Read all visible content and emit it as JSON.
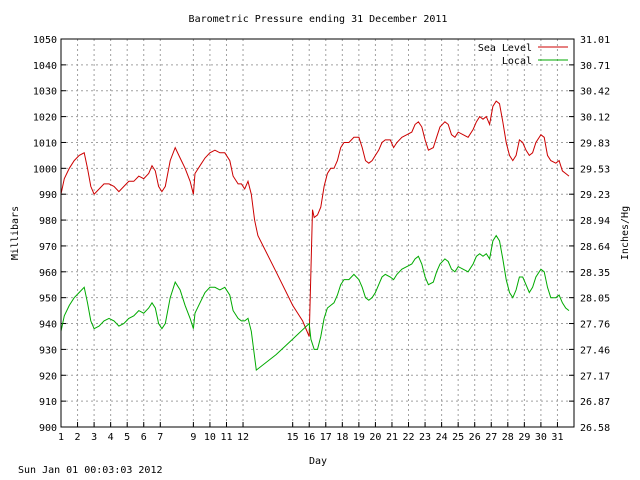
{
  "chart_data": {
    "type": "line",
    "title": "Barometric Pressure ending 31 December 2011",
    "xlabel": "Day",
    "ylabel": "Millibars",
    "y2label": "Inches/Hg",
    "xlim": [
      1,
      32
    ],
    "ylim": [
      900,
      1050
    ],
    "y_ticks": [
      900,
      910,
      920,
      930,
      940,
      950,
      960,
      970,
      980,
      990,
      1000,
      1010,
      1020,
      1030,
      1040,
      1050
    ],
    "y2_ticks": [
      "26.58",
      "26.87",
      "27.17",
      "27.46",
      "27.76",
      "28.05",
      "28.35",
      "28.64",
      "28.94",
      "29.23",
      "29.53",
      "29.83",
      "30.12",
      "30.42",
      "30.71",
      "31.01"
    ],
    "x_ticks": [
      {
        "day": 1,
        "label": "1"
      },
      {
        "day": 2,
        "label": "2"
      },
      {
        "day": 3,
        "label": "3"
      },
      {
        "day": 4,
        "label": "4"
      },
      {
        "day": 5,
        "label": "5"
      },
      {
        "day": 6,
        "label": "6"
      },
      {
        "day": 7,
        "label": "7"
      },
      {
        "day": 9,
        "label": "9"
      },
      {
        "day": 10,
        "label": "10"
      },
      {
        "day": 11,
        "label": "11"
      },
      {
        "day": 12,
        "label": "12"
      },
      {
        "day": 15,
        "label": "15"
      },
      {
        "day": 16,
        "label": "16"
      },
      {
        "day": 17,
        "label": "17"
      },
      {
        "day": 18,
        "label": "18"
      },
      {
        "day": 19,
        "label": "19"
      },
      {
        "day": 20,
        "label": "20"
      },
      {
        "day": 21,
        "label": "21"
      },
      {
        "day": 22,
        "label": "22"
      },
      {
        "day": 23,
        "label": "23"
      },
      {
        "day": 24,
        "label": "24"
      },
      {
        "day": 25,
        "label": "25"
      },
      {
        "day": 26,
        "label": "26"
      },
      {
        "day": 27,
        "label": "27"
      },
      {
        "day": 28,
        "label": "28"
      },
      {
        "day": 29,
        "label": "29"
      },
      {
        "day": 30,
        "label": "30"
      },
      {
        "day": 31,
        "label": "31"
      }
    ],
    "grid": true,
    "legend_position": "top-right",
    "series": [
      {
        "name": "Sea Level",
        "color": "#cc0000",
        "points": [
          [
            1.0,
            990
          ],
          [
            1.2,
            996
          ],
          [
            1.5,
            1000
          ],
          [
            1.8,
            1003
          ],
          [
            2.1,
            1005
          ],
          [
            2.4,
            1006
          ],
          [
            2.6,
            1000
          ],
          [
            2.8,
            993
          ],
          [
            3.0,
            990
          ],
          [
            3.3,
            992
          ],
          [
            3.6,
            994
          ],
          [
            3.9,
            994
          ],
          [
            4.2,
            993
          ],
          [
            4.5,
            991
          ],
          [
            4.8,
            993
          ],
          [
            5.1,
            995
          ],
          [
            5.4,
            995
          ],
          [
            5.7,
            997
          ],
          [
            6.0,
            996
          ],
          [
            6.3,
            998
          ],
          [
            6.5,
            1001
          ],
          [
            6.7,
            999
          ],
          [
            6.9,
            993
          ],
          [
            7.1,
            991
          ],
          [
            7.3,
            993
          ],
          [
            7.6,
            1003
          ],
          [
            7.9,
            1008
          ],
          [
            8.2,
            1004
          ],
          [
            8.5,
            1000
          ],
          [
            8.8,
            995
          ],
          [
            9.0,
            990
          ],
          [
            9.1,
            998
          ],
          [
            9.4,
            1001
          ],
          [
            9.7,
            1004
          ],
          [
            10.0,
            1006
          ],
          [
            10.3,
            1007
          ],
          [
            10.6,
            1006
          ],
          [
            10.9,
            1006
          ],
          [
            11.2,
            1003
          ],
          [
            11.4,
            997
          ],
          [
            11.7,
            994
          ],
          [
            11.9,
            994
          ],
          [
            12.1,
            992
          ],
          [
            12.3,
            995
          ],
          [
            12.5,
            990
          ],
          [
            12.7,
            980
          ],
          [
            12.9,
            974
          ],
          [
            14.0,
            960
          ],
          [
            15.0,
            947
          ],
          [
            15.6,
            941
          ],
          [
            16.0,
            935
          ],
          [
            16.1,
            960
          ],
          [
            16.2,
            984
          ],
          [
            16.3,
            981
          ],
          [
            16.5,
            982
          ],
          [
            16.7,
            985
          ],
          [
            16.9,
            993
          ],
          [
            17.1,
            998
          ],
          [
            17.3,
            1000
          ],
          [
            17.5,
            1000
          ],
          [
            17.7,
            1003
          ],
          [
            17.9,
            1008
          ],
          [
            18.1,
            1010
          ],
          [
            18.4,
            1010
          ],
          [
            18.7,
            1012
          ],
          [
            19.0,
            1012
          ],
          [
            19.2,
            1008
          ],
          [
            19.4,
            1003
          ],
          [
            19.6,
            1002
          ],
          [
            19.8,
            1003
          ],
          [
            20.0,
            1005
          ],
          [
            20.2,
            1007
          ],
          [
            20.4,
            1010
          ],
          [
            20.6,
            1011
          ],
          [
            20.9,
            1011
          ],
          [
            21.1,
            1008
          ],
          [
            21.3,
            1010
          ],
          [
            21.6,
            1012
          ],
          [
            21.9,
            1013
          ],
          [
            22.2,
            1014
          ],
          [
            22.4,
            1017
          ],
          [
            22.6,
            1018
          ],
          [
            22.8,
            1016
          ],
          [
            23.0,
            1011
          ],
          [
            23.2,
            1007
          ],
          [
            23.5,
            1008
          ],
          [
            23.7,
            1012
          ],
          [
            23.9,
            1016
          ],
          [
            24.2,
            1018
          ],
          [
            24.4,
            1017
          ],
          [
            24.6,
            1013
          ],
          [
            24.8,
            1012
          ],
          [
            25.0,
            1014
          ],
          [
            25.3,
            1013
          ],
          [
            25.6,
            1012
          ],
          [
            25.9,
            1015
          ],
          [
            26.1,
            1018
          ],
          [
            26.3,
            1020
          ],
          [
            26.5,
            1019
          ],
          [
            26.7,
            1020
          ],
          [
            26.9,
            1017
          ],
          [
            27.1,
            1024
          ],
          [
            27.3,
            1026
          ],
          [
            27.5,
            1025
          ],
          [
            27.7,
            1018
          ],
          [
            27.9,
            1010
          ],
          [
            28.1,
            1005
          ],
          [
            28.3,
            1003
          ],
          [
            28.5,
            1005
          ],
          [
            28.7,
            1011
          ],
          [
            28.9,
            1010
          ],
          [
            29.1,
            1007
          ],
          [
            29.3,
            1005
          ],
          [
            29.5,
            1006
          ],
          [
            29.7,
            1010
          ],
          [
            30.0,
            1013
          ],
          [
            30.2,
            1012
          ],
          [
            30.4,
            1005
          ],
          [
            30.6,
            1003
          ],
          [
            30.9,
            1002
          ],
          [
            31.1,
            1003
          ],
          [
            31.3,
            999
          ],
          [
            31.5,
            998
          ],
          [
            31.7,
            997
          ]
        ]
      },
      {
        "name": "Local",
        "color": "#00aa00",
        "points": [
          [
            1.0,
            937
          ],
          [
            1.2,
            943
          ],
          [
            1.5,
            947
          ],
          [
            1.8,
            950
          ],
          [
            2.1,
            952
          ],
          [
            2.4,
            954
          ],
          [
            2.6,
            948
          ],
          [
            2.8,
            941
          ],
          [
            3.0,
            938
          ],
          [
            3.3,
            939
          ],
          [
            3.6,
            941
          ],
          [
            3.9,
            942
          ],
          [
            4.2,
            941
          ],
          [
            4.5,
            939
          ],
          [
            4.8,
            940
          ],
          [
            5.1,
            942
          ],
          [
            5.4,
            943
          ],
          [
            5.7,
            945
          ],
          [
            6.0,
            944
          ],
          [
            6.3,
            946
          ],
          [
            6.5,
            948
          ],
          [
            6.7,
            946
          ],
          [
            6.9,
            940
          ],
          [
            7.1,
            938
          ],
          [
            7.3,
            940
          ],
          [
            7.6,
            950
          ],
          [
            7.9,
            956
          ],
          [
            8.2,
            953
          ],
          [
            8.5,
            947
          ],
          [
            8.8,
            942
          ],
          [
            9.0,
            938
          ],
          [
            9.1,
            944
          ],
          [
            9.4,
            948
          ],
          [
            9.7,
            952
          ],
          [
            10.0,
            954
          ],
          [
            10.3,
            954
          ],
          [
            10.6,
            953
          ],
          [
            10.9,
            954
          ],
          [
            11.2,
            951
          ],
          [
            11.4,
            945
          ],
          [
            11.7,
            942
          ],
          [
            11.9,
            941
          ],
          [
            12.1,
            941
          ],
          [
            12.3,
            942
          ],
          [
            12.5,
            937
          ],
          [
            12.8,
            922
          ],
          [
            14.0,
            928
          ],
          [
            15.0,
            934
          ],
          [
            16.0,
            940
          ],
          [
            16.1,
            934
          ],
          [
            16.3,
            930
          ],
          [
            16.5,
            930
          ],
          [
            16.7,
            935
          ],
          [
            16.9,
            942
          ],
          [
            17.1,
            946
          ],
          [
            17.3,
            947
          ],
          [
            17.5,
            948
          ],
          [
            17.7,
            951
          ],
          [
            17.9,
            955
          ],
          [
            18.1,
            957
          ],
          [
            18.4,
            957
          ],
          [
            18.7,
            959
          ],
          [
            19.0,
            957
          ],
          [
            19.2,
            954
          ],
          [
            19.4,
            950
          ],
          [
            19.6,
            949
          ],
          [
            19.8,
            950
          ],
          [
            20.0,
            952
          ],
          [
            20.2,
            955
          ],
          [
            20.4,
            958
          ],
          [
            20.6,
            959
          ],
          [
            20.9,
            958
          ],
          [
            21.1,
            957
          ],
          [
            21.3,
            959
          ],
          [
            21.6,
            961
          ],
          [
            21.9,
            962
          ],
          [
            22.2,
            963
          ],
          [
            22.4,
            965
          ],
          [
            22.6,
            966
          ],
          [
            22.8,
            963
          ],
          [
            23.0,
            958
          ],
          [
            23.2,
            955
          ],
          [
            23.5,
            956
          ],
          [
            23.7,
            960
          ],
          [
            23.9,
            963
          ],
          [
            24.2,
            965
          ],
          [
            24.4,
            964
          ],
          [
            24.6,
            961
          ],
          [
            24.8,
            960
          ],
          [
            25.0,
            962
          ],
          [
            25.3,
            961
          ],
          [
            25.6,
            960
          ],
          [
            25.9,
            963
          ],
          [
            26.1,
            966
          ],
          [
            26.3,
            967
          ],
          [
            26.5,
            966
          ],
          [
            26.7,
            967
          ],
          [
            26.9,
            965
          ],
          [
            27.1,
            972
          ],
          [
            27.3,
            974
          ],
          [
            27.5,
            972
          ],
          [
            27.7,
            965
          ],
          [
            27.9,
            957
          ],
          [
            28.1,
            952
          ],
          [
            28.3,
            950
          ],
          [
            28.5,
            953
          ],
          [
            28.7,
            958
          ],
          [
            28.9,
            958
          ],
          [
            29.1,
            955
          ],
          [
            29.3,
            952
          ],
          [
            29.5,
            954
          ],
          [
            29.7,
            958
          ],
          [
            30.0,
            961
          ],
          [
            30.2,
            960
          ],
          [
            30.4,
            954
          ],
          [
            30.6,
            950
          ],
          [
            30.9,
            950
          ],
          [
            31.1,
            951
          ],
          [
            31.3,
            948
          ],
          [
            31.5,
            946
          ],
          [
            31.7,
            945
          ]
        ]
      }
    ]
  },
  "footer": {
    "timestamp": "Sun Jan 01 00:03:03 2012"
  }
}
